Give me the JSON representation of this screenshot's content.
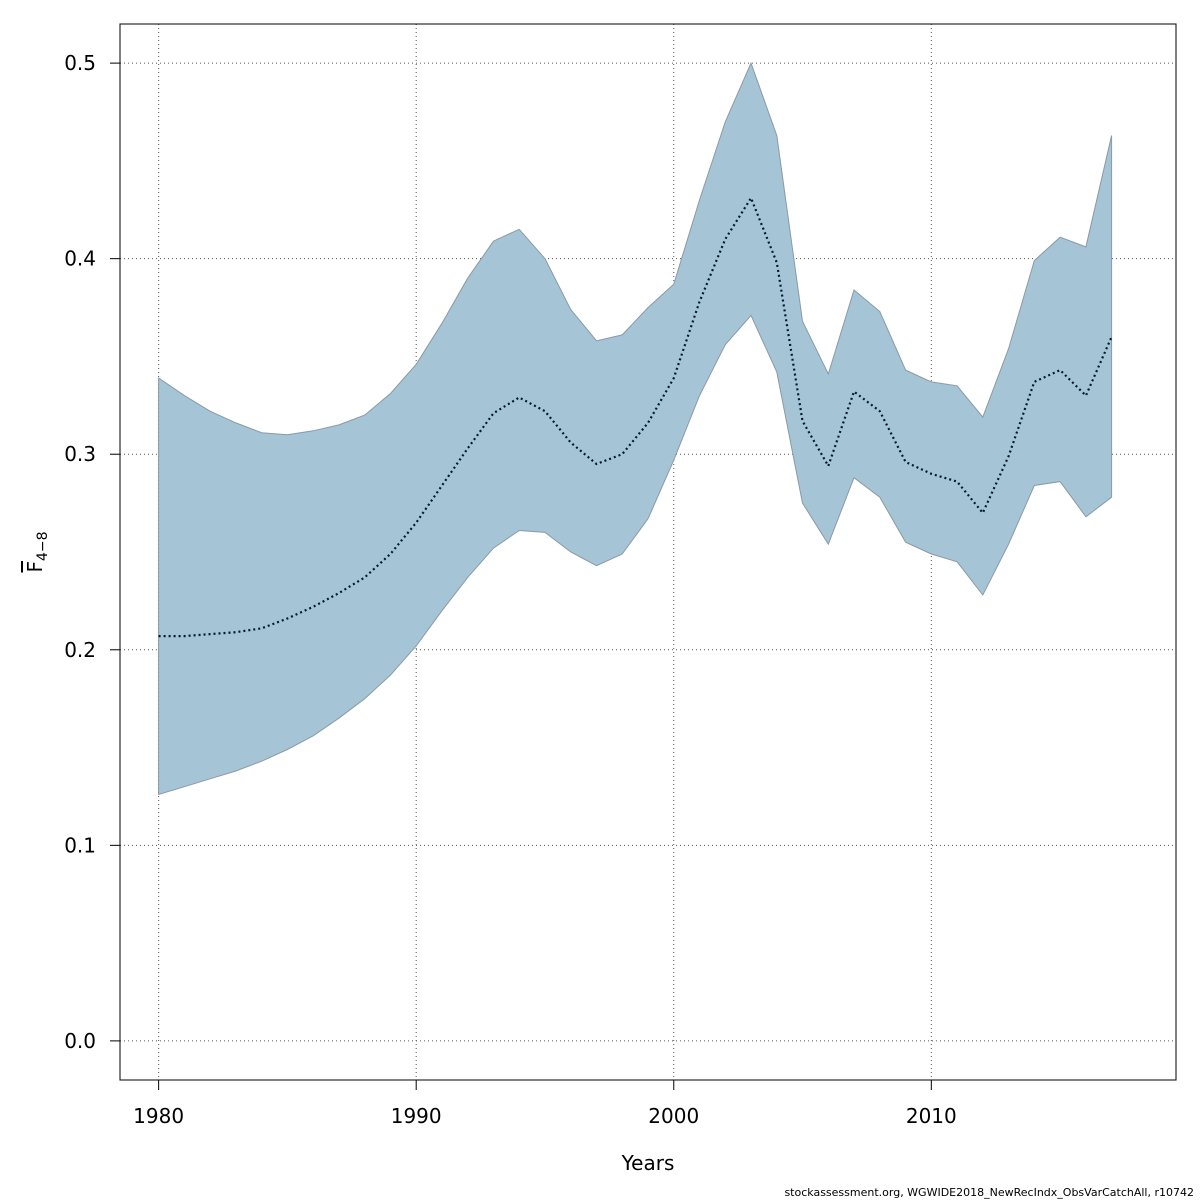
{
  "chart_data": {
    "type": "area",
    "title": "",
    "xlabel": "Years",
    "ylabel": {
      "main": "F",
      "subscript": "4−8"
    },
    "xlim": [
      1978.5,
      2019.5
    ],
    "ylim": [
      -0.02,
      0.52
    ],
    "xticks": [
      1980,
      1990,
      2000,
      2010
    ],
    "yticks": [
      0.0,
      0.1,
      0.2,
      0.3,
      0.4,
      0.5
    ],
    "ytick_labels": [
      "0.0",
      "0.1",
      "0.2",
      "0.3",
      "0.4",
      "0.5"
    ],
    "grid": true,
    "colors": {
      "band_fill": "#a5c4d5",
      "band_edge": "#8a9aa6",
      "line": "#001a33",
      "grid": "#555555"
    },
    "x": [
      1980,
      1981,
      1982,
      1983,
      1984,
      1985,
      1986,
      1987,
      1988,
      1989,
      1990,
      1991,
      1992,
      1993,
      1994,
      1995,
      1996,
      1997,
      1998,
      1999,
      2000,
      2001,
      2002,
      2003,
      2004,
      2005,
      2006,
      2007,
      2008,
      2009,
      2010,
      2011,
      2012,
      2013,
      2014,
      2015,
      2016,
      2017
    ],
    "series": [
      {
        "role": "estimate",
        "style": "dotted",
        "values": [
          0.207,
          0.207,
          0.208,
          0.209,
          0.211,
          0.216,
          0.222,
          0.229,
          0.237,
          0.249,
          0.265,
          0.284,
          0.303,
          0.321,
          0.329,
          0.322,
          0.306,
          0.295,
          0.3,
          0.316,
          0.339,
          0.378,
          0.41,
          0.431,
          0.398,
          0.317,
          0.294,
          0.332,
          0.322,
          0.296,
          0.29,
          0.286,
          0.27,
          0.299,
          0.337,
          0.343,
          0.33,
          0.36
        ]
      },
      {
        "role": "upper",
        "values": [
          0.339,
          0.33,
          0.322,
          0.316,
          0.311,
          0.31,
          0.312,
          0.315,
          0.32,
          0.331,
          0.346,
          0.367,
          0.39,
          0.409,
          0.415,
          0.4,
          0.374,
          0.358,
          0.361,
          0.375,
          0.387,
          0.43,
          0.47,
          0.5,
          0.463,
          0.368,
          0.341,
          0.384,
          0.373,
          0.343,
          0.337,
          0.335,
          0.319,
          0.354,
          0.399,
          0.411,
          0.406,
          0.463
        ]
      },
      {
        "role": "lower",
        "values": [
          0.126,
          0.13,
          0.134,
          0.138,
          0.143,
          0.149,
          0.156,
          0.165,
          0.175,
          0.187,
          0.202,
          0.22,
          0.237,
          0.252,
          0.261,
          0.26,
          0.25,
          0.243,
          0.249,
          0.267,
          0.297,
          0.33,
          0.356,
          0.371,
          0.342,
          0.275,
          0.254,
          0.288,
          0.278,
          0.255,
          0.249,
          0.245,
          0.228,
          0.254,
          0.284,
          0.286,
          0.268,
          0.278
        ]
      }
    ]
  },
  "footer": "stockassessment.org, WGWIDE2018_NewRecIndx_ObsVarCatchAll, r10742"
}
